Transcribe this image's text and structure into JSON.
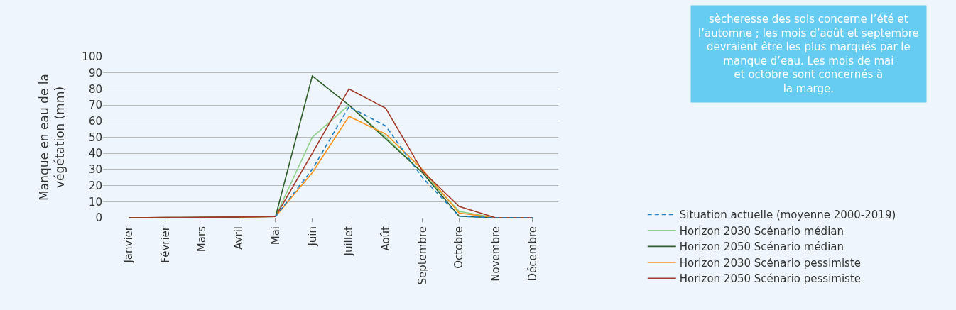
{
  "chart_data": {
    "type": "line",
    "ylabel": "Manque en eau de la\nvégétation (mm)",
    "categories": [
      "Janvier",
      "Février",
      "Mars",
      "Avril",
      "Mai",
      "Juin",
      "Juillet",
      "Août",
      "Septembre",
      "Octobre",
      "Novembre",
      "Décembre"
    ],
    "series": [
      {
        "name": "Situation actuelle (moyenne 2000-2019)",
        "color": "#1f7fc4",
        "line_style": "dashed",
        "values": [
          null,
          null,
          null,
          null,
          0.8,
          30,
          69,
          57,
          25,
          1,
          0,
          0
        ]
      },
      {
        "name": "Horizon 2030 Scénario médian",
        "color": "#8fd18a",
        "values": [
          0,
          0.2,
          0.3,
          0.5,
          0.8,
          50,
          70,
          50,
          28,
          4,
          0,
          0
        ]
      },
      {
        "name": "Horizon 2050 Scénario médian",
        "color": "#2d5e2a",
        "values": [
          0,
          0.2,
          0.3,
          0.5,
          0.8,
          88,
          70,
          49,
          28,
          1,
          0,
          0
        ]
      },
      {
        "name": "Horizon 2030 Scénario pessimiste",
        "color": "#f7941d",
        "values": [
          null,
          null,
          null,
          0.5,
          0.8,
          28,
          63,
          52,
          30,
          3,
          0,
          0
        ]
      },
      {
        "name": "Horizon 2050 Scénario pessimiste",
        "color": "#a33a2a",
        "values": [
          0,
          0.2,
          0.3,
          0.5,
          0.8,
          40,
          80,
          68,
          29,
          7,
          0,
          0
        ]
      }
    ],
    "ylim": [
      0,
      100
    ],
    "yticks": [
      0,
      10,
      20,
      30,
      40,
      50,
      60,
      70,
      80,
      90,
      100
    ],
    "grid": "y",
    "legend": "bottom right",
    "marker": "none",
    "line_style": "solid",
    "annotations": [
      "sècheresse des sols concerne l’été et\nl’automne ; les mois d’août et septembre\ndevraient être les plus marqués par le\nmanque d’eau. Les mois de mai\net octobre sont concernés à\nla marge."
    ]
  }
}
